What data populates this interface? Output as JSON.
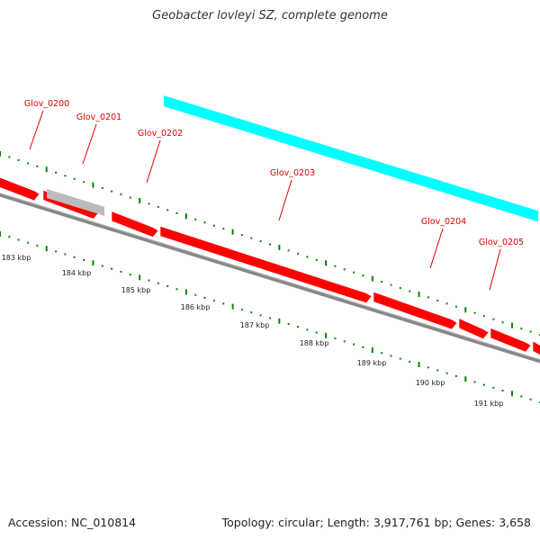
{
  "header": {
    "title": "Geobacter lovleyi SZ, complete genome"
  },
  "footer": {
    "accession": "Accession: NC_010814",
    "summary": "Topology: circular; Length: 3,917,761 bp; Genes: 3,658"
  },
  "colors": {
    "gene_red": "#ff0000",
    "gene_cyan": "#00ffff",
    "gene_grey": "#bbbbbb",
    "backbone": "#888888",
    "tick_green": "#008800",
    "label_red": "#dd0000"
  },
  "gene_labels": [
    "Glov_0200",
    "Glov_0201",
    "Glov_0202",
    "Glov_0203",
    "Glov_0204",
    "Glov_0205"
  ],
  "kbp_labels": [
    "183 kbp",
    "184 kbp",
    "185 kbp",
    "186 kbp",
    "187 kbp",
    "188 kbp",
    "189 kbp",
    "190 kbp",
    "191 kbp"
  ]
}
